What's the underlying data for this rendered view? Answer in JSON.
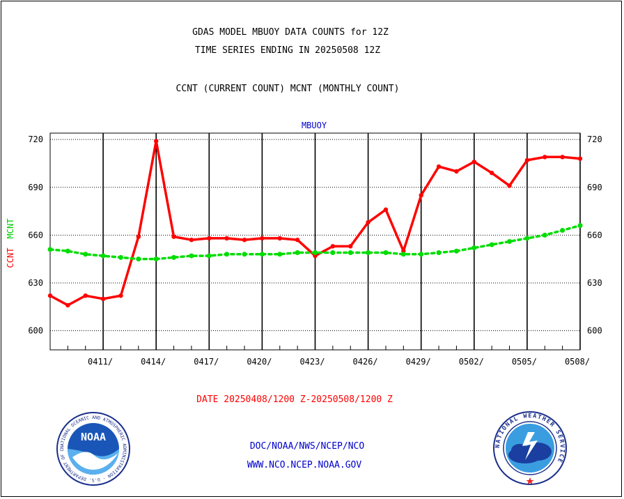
{
  "header": {
    "title_line1": "GDAS MODEL MBUOY DATA COUNTS for 12Z",
    "title_line2": "TIME SERIES ENDING IN 20250508 12Z",
    "subtitle": "CCNT (CURRENT COUNT) MCNT (MONTHLY COUNT)"
  },
  "footer": {
    "date_range": "DATE 20250408/1200 Z-20250508/1200 Z",
    "link1": "DOC/NOAA/NWS/NCEP/NCO",
    "link2": "WWW.NCO.NCEP.NOAA.GOV",
    "noaa_logo_text": "NOAA",
    "noaa_ring_text": "NATIONAL OCEANIC AND ATMOSPHERIC ADMINISTRATION · U.S. DEPARTMENT OF COMMERCE",
    "nws_ring_text": "NATIONAL WEATHER SERVICE"
  },
  "chart_data": {
    "type": "line",
    "title": "MBUOY",
    "ylabel_ccnt": "CCNT",
    "ylabel_mcnt": "MCNT",
    "ylim": [
      588,
      724
    ],
    "yticks": [
      600,
      630,
      660,
      690,
      720
    ],
    "grid": true,
    "xlim_day": [
      0,
      30
    ],
    "x_tick_days": [
      3,
      6,
      9,
      12,
      15,
      18,
      21,
      24,
      27,
      30
    ],
    "x_tick_labels": [
      "0411/",
      "0414/",
      "0417/",
      "0420/",
      "0423/",
      "0426/",
      "0429/",
      "0502/",
      "0505/",
      "0508/"
    ],
    "colors": {
      "ccnt": "#ff0000",
      "mcnt": "#00dd00",
      "title": "#0000cc"
    },
    "series": [
      {
        "key": "ccnt",
        "style": "solid",
        "x_day": [
          0,
          1,
          2,
          3,
          4,
          5,
          6,
          7,
          8,
          9,
          10,
          11,
          12,
          13,
          14,
          15,
          16,
          17,
          18,
          19,
          20,
          21,
          22,
          23,
          24,
          25,
          26,
          27,
          28,
          29,
          30
        ],
        "values": [
          622,
          616,
          622,
          620,
          622,
          659,
          719,
          659,
          657,
          658,
          658,
          657,
          658,
          658,
          657,
          647,
          653,
          653,
          668,
          676,
          650,
          685,
          703,
          700,
          706,
          699,
          691,
          707,
          709,
          709,
          708
        ]
      },
      {
        "key": "mcnt",
        "style": "dotted",
        "x_day": [
          0,
          1,
          2,
          3,
          4,
          5,
          6,
          7,
          8,
          9,
          10,
          11,
          12,
          13,
          14,
          15,
          16,
          17,
          18,
          19,
          20,
          21,
          22,
          23,
          24,
          25,
          26,
          27,
          28,
          29,
          30
        ],
        "values": [
          651,
          650,
          648,
          647,
          646,
          645,
          645,
          646,
          647,
          647,
          648,
          648,
          648,
          648,
          649,
          649,
          649,
          649,
          649,
          649,
          648,
          648,
          649,
          650,
          652,
          654,
          656,
          658,
          660,
          663,
          666
        ]
      }
    ]
  }
}
